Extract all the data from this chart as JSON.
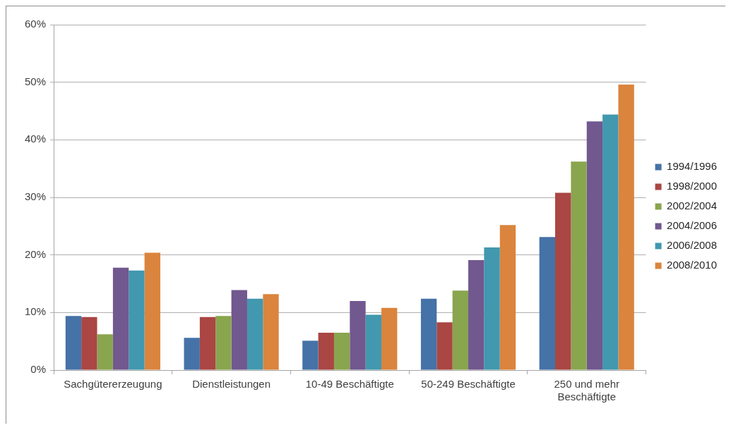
{
  "chart_data": {
    "type": "bar",
    "categories": [
      "Sachgütererzeugung",
      "Dienstleistungen",
      "10-49 Beschäftigte",
      "50-249 Beschäftigte",
      "250 und mehr Beschäftigte"
    ],
    "series": [
      {
        "name": "1994/1996",
        "color": "#4572a7",
        "values": [
          9.4,
          5.6,
          5.1,
          12.4,
          23.1
        ]
      },
      {
        "name": "1998/2000",
        "color": "#aa4643",
        "values": [
          9.2,
          9.2,
          6.5,
          8.3,
          30.8
        ]
      },
      {
        "name": "2002/2004",
        "color": "#89a54e",
        "values": [
          6.2,
          9.4,
          6.5,
          13.8,
          36.2
        ]
      },
      {
        "name": "2004/2006",
        "color": "#71588f",
        "values": [
          17.8,
          13.9,
          12.0,
          19.1,
          43.2
        ]
      },
      {
        "name": "2006/2008",
        "color": "#4198af",
        "values": [
          17.3,
          12.4,
          9.6,
          21.3,
          44.4
        ]
      },
      {
        "name": "2008/2010",
        "color": "#db843d",
        "values": [
          20.4,
          13.2,
          10.8,
          25.2,
          49.6
        ]
      }
    ],
    "ylim": [
      0,
      60
    ],
    "yticks": [
      {
        "value": 0,
        "label": "0%"
      },
      {
        "value": 10,
        "label": "10%"
      },
      {
        "value": 20,
        "label": "20%"
      },
      {
        "value": 30,
        "label": "30%"
      },
      {
        "value": 40,
        "label": "40%"
      },
      {
        "value": 50,
        "label": "50%"
      },
      {
        "value": 60,
        "label": "60%"
      }
    ],
    "grid": "y",
    "legend": "right"
  }
}
